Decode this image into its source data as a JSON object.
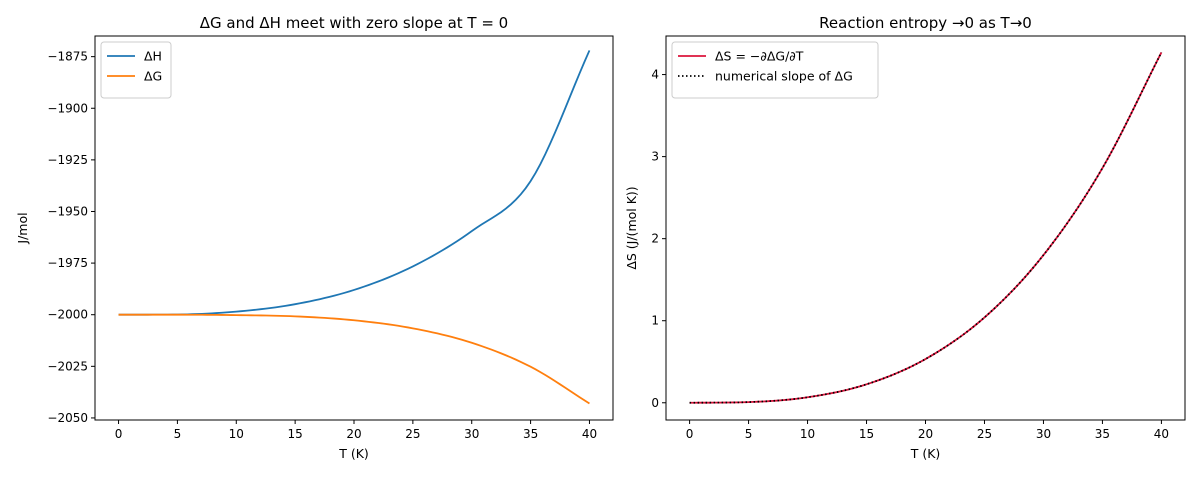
{
  "chart_data": [
    {
      "type": "line",
      "title": "ΔG and ΔH meet with zero slope at T = 0",
      "xlabel": "T (K)",
      "ylabel": "J/mol",
      "xlim": [
        -2,
        42
      ],
      "ylim": [
        -2051,
        -1865
      ],
      "xticks": [
        0,
        5,
        10,
        15,
        20,
        25,
        30,
        35,
        40
      ],
      "yticks": [
        -2050,
        -2025,
        -2000,
        -1975,
        -1950,
        -1925,
        -1900,
        -1875
      ],
      "grid": false,
      "legend_position": "upper left",
      "series": [
        {
          "name": "ΔH",
          "color": "#1f77b4",
          "style": "solid",
          "x": [
            0,
            5,
            10,
            15,
            20,
            25,
            30,
            35,
            40
          ],
          "y": [
            -2000,
            -1999.9,
            -1998.5,
            -1994.9,
            -1988.0,
            -1976.6,
            -1959.5,
            -1935.3,
            -1872
          ]
        },
        {
          "name": "ΔG",
          "color": "#ff7f0e",
          "style": "solid",
          "x": [
            0,
            5,
            10,
            15,
            20,
            25,
            30,
            35,
            40
          ],
          "y": [
            -2000,
            -2000.0,
            -2000.2,
            -2000.8,
            -2002.7,
            -2006.6,
            -2013.6,
            -2025.2,
            -2043
          ]
        }
      ]
    },
    {
      "type": "line",
      "title": "Reaction entropy →0 as T→0",
      "xlabel": "T (K)",
      "ylabel": "ΔS (J/(mol K))",
      "xlim": [
        -2,
        42
      ],
      "ylim": [
        -0.21,
        4.47
      ],
      "xticks": [
        0,
        5,
        10,
        15,
        20,
        25,
        30,
        35,
        40
      ],
      "yticks": [
        0,
        1,
        2,
        3,
        4
      ],
      "grid": false,
      "legend_position": "upper left",
      "series": [
        {
          "name": "ΔS = −∂ΔG/∂T",
          "color": "#dc143c",
          "style": "solid",
          "x": [
            0,
            5,
            10,
            15,
            20,
            25,
            30,
            35,
            40
          ],
          "y": [
            0,
            0.0083,
            0.067,
            0.225,
            0.533,
            1.04,
            1.8,
            2.86,
            4.27
          ]
        },
        {
          "name": "numerical slope of ΔG",
          "color": "#000000",
          "style": "dotted",
          "x": [
            0,
            5,
            10,
            15,
            20,
            25,
            30,
            35,
            40
          ],
          "y": [
            0,
            0.0083,
            0.067,
            0.225,
            0.533,
            1.04,
            1.8,
            2.86,
            4.27
          ]
        }
      ]
    }
  ]
}
